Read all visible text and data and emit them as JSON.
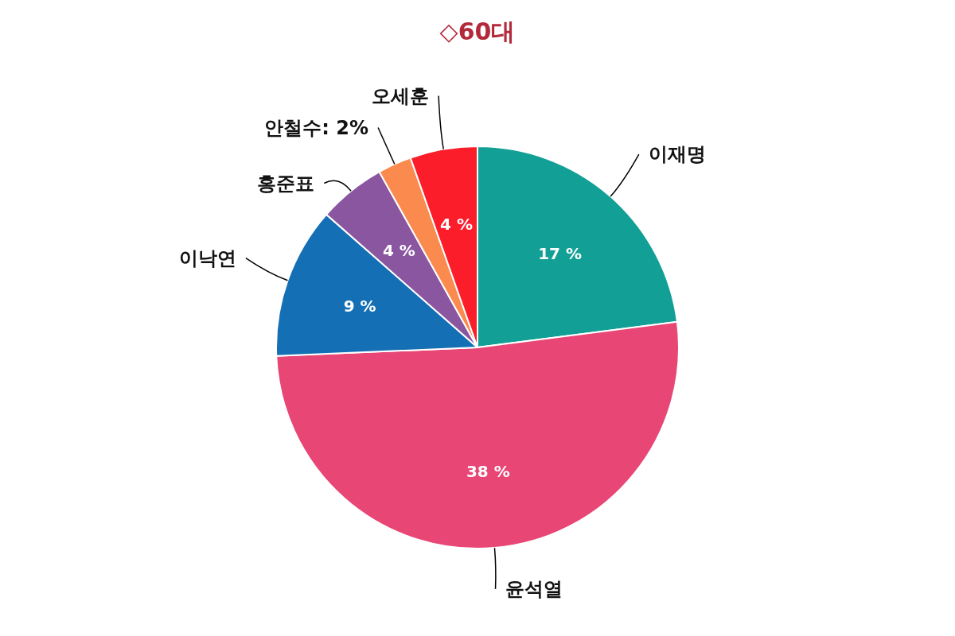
{
  "chart_data": {
    "type": "pie",
    "title": "◇60대",
    "categories": [
      "이재명",
      "윤석열",
      "이낙연",
      "홍준표",
      "안철수",
      "오세훈"
    ],
    "values": [
      17,
      38,
      9,
      4,
      2,
      4
    ],
    "value_labels": [
      "17 %",
      "38 %",
      "9 %",
      "4 %",
      "2%",
      "4 %"
    ],
    "colors": [
      "#12a096",
      "#e84675",
      "#156fb5",
      "#8a56a0",
      "#fb8a4f",
      "#fb1d2a"
    ]
  }
}
